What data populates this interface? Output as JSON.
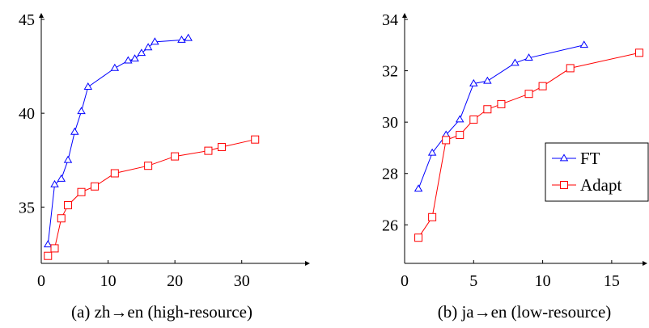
{
  "colors": {
    "ft": "#0000ff",
    "adapt": "#ff0000",
    "axis": "#000000",
    "background": "#ffffff"
  },
  "legend": {
    "placement": "right, vertically centered (panel b)",
    "entries": [
      {
        "label": "FT",
        "marker": "triangle"
      },
      {
        "label": "Adapt",
        "marker": "square"
      }
    ]
  },
  "chart_data": [
    {
      "type": "line",
      "caption": "(a) zh→en (high-resource)",
      "xlabel": "",
      "ylabel": "",
      "xlim": [
        0,
        35
      ],
      "ylim": [
        32,
        45
      ],
      "xticks": [
        0,
        10,
        20,
        30
      ],
      "yticks": [
        35,
        40,
        45
      ],
      "grid": false,
      "series": [
        {
          "name": "FT",
          "color": "#0000ff",
          "marker": "triangle",
          "x": [
            1,
            2,
            3,
            4,
            5,
            6,
            7,
            11,
            13,
            14,
            15,
            16,
            17,
            21,
            22
          ],
          "y": [
            33.0,
            36.2,
            36.5,
            37.5,
            39.0,
            40.1,
            41.4,
            42.4,
            42.8,
            42.9,
            43.2,
            43.5,
            43.8,
            43.9,
            44.0
          ]
        },
        {
          "name": "Adapt",
          "color": "#ff0000",
          "marker": "square",
          "x": [
            1,
            2,
            3,
            4,
            6,
            8,
            11,
            16,
            20,
            25,
            27,
            32
          ],
          "y": [
            32.4,
            32.8,
            34.4,
            35.1,
            35.8,
            36.1,
            36.8,
            37.2,
            37.7,
            38.0,
            38.2,
            38.6
          ]
        }
      ]
    },
    {
      "type": "line",
      "caption": "(b) ja→en (low-resource)",
      "xlabel": "",
      "ylabel": "",
      "xlim": [
        0,
        17
      ],
      "ylim": [
        24.5,
        34
      ],
      "xticks": [
        0,
        5,
        10,
        15
      ],
      "yticks": [
        26,
        28,
        30,
        32,
        34
      ],
      "grid": false,
      "series": [
        {
          "name": "FT",
          "color": "#0000ff",
          "marker": "triangle",
          "x": [
            1,
            2,
            3,
            4,
            5,
            6,
            8,
            9,
            13
          ],
          "y": [
            27.4,
            28.8,
            29.5,
            30.1,
            31.5,
            31.6,
            32.3,
            32.5,
            33.0
          ]
        },
        {
          "name": "Adapt",
          "color": "#ff0000",
          "marker": "square",
          "x": [
            1,
            2,
            3,
            4,
            5,
            6,
            7,
            9,
            10,
            12,
            17
          ],
          "y": [
            25.5,
            26.3,
            29.3,
            29.5,
            30.1,
            30.5,
            30.7,
            31.1,
            31.4,
            32.1,
            32.7
          ]
        }
      ]
    }
  ]
}
